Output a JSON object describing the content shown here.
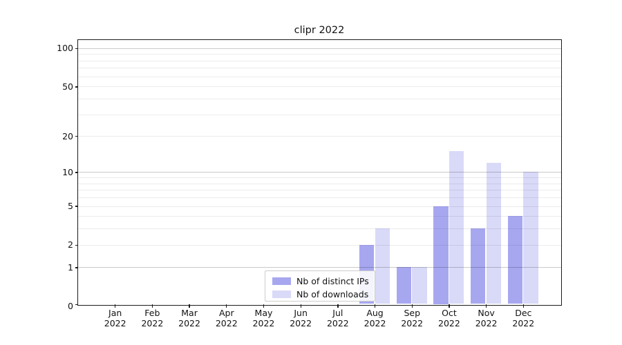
{
  "title": "clipr 2022",
  "chart_data": {
    "type": "bar",
    "title": "clipr 2022",
    "categories": [
      "Jan",
      "Feb",
      "Mar",
      "Apr",
      "May",
      "Jun",
      "Jul",
      "Aug",
      "Sep",
      "Oct",
      "Nov",
      "Dec"
    ],
    "category_year": "2022",
    "series": [
      {
        "name": "Nb of distinct IPs",
        "color": "#a7a7f0",
        "values": [
          0,
          0,
          0,
          0,
          0,
          0,
          0,
          2,
          1,
          5,
          3,
          4
        ]
      },
      {
        "name": "Nb of downloads",
        "color": "#d9d9f8",
        "values": [
          0,
          0,
          0,
          0,
          0,
          0,
          0,
          3,
          1,
          15,
          12,
          10
        ]
      }
    ],
    "xlabel": "",
    "ylabel": "",
    "y_axis": {
      "scale": "symlog",
      "tick_values": [
        0,
        1,
        2,
        5,
        10,
        20,
        50,
        100
      ],
      "tick_labels": [
        "0",
        "1",
        "2",
        "5",
        "10",
        "20",
        "50",
        "100"
      ],
      "major_gridlines": [
        1,
        10,
        100
      ],
      "minor_gridlines": [
        3,
        4,
        6,
        7,
        8,
        9,
        30,
        40,
        60,
        70,
        80,
        90
      ],
      "ylim": [
        0,
        116
      ]
    },
    "grid": "on",
    "legend_position": "bottom-center"
  }
}
